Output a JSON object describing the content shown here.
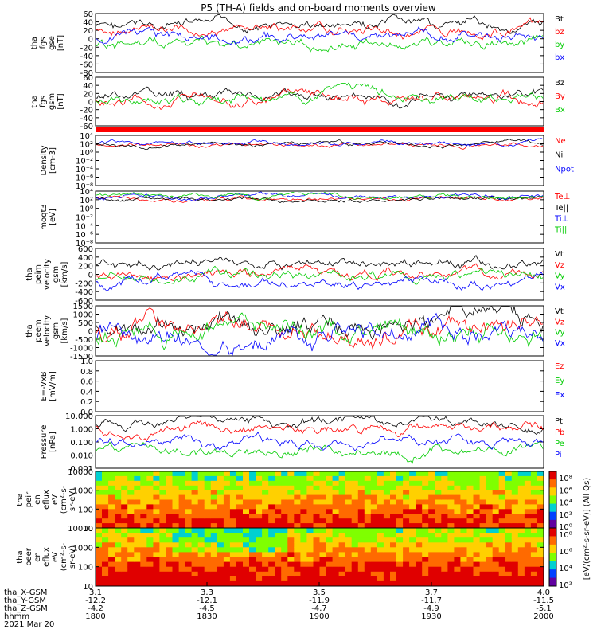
{
  "chart_data": {
    "type": "line",
    "title": "P5 (TH-A) fields and on-board moments overview",
    "panels": [
      {
        "ylabel": [
          "tha",
          "fgs",
          "gse",
          "[nT]"
        ],
        "ylim": [
          -80,
          60
        ],
        "ytick_labels": [
          "60",
          "40",
          "20",
          "0",
          "-20",
          "-40",
          "-60",
          "-80"
        ],
        "series": [
          {
            "name": "Bt",
            "color": "#000000",
            "level": 28
          },
          {
            "name": "bz",
            "color": "#ff0000",
            "level": 22
          },
          {
            "name": "by",
            "color": "#00cc00",
            "level": -12
          },
          {
            "name": "bx",
            "color": "#0000ff",
            "level": 5
          }
        ]
      },
      {
        "ylabel": [
          "tha",
          "fgs",
          "gsm",
          "[nT]"
        ],
        "ylim": [
          -80,
          60
        ],
        "ytick_labels": [
          "60",
          "40",
          "20",
          "0",
          "-20",
          "-40",
          "-60"
        ],
        "series": [
          {
            "name": "Bz",
            "color": "#000000",
            "level": 3
          },
          {
            "name": "By",
            "color": "#ff0000",
            "level": -5
          },
          {
            "name": "Bx",
            "color": "#00cc00",
            "level": 0
          }
        ]
      },
      {
        "ylabel": [
          "Density",
          "[cm-3]"
        ],
        "ytick_labels": [
          "10⁴",
          "10²",
          "10⁰",
          "10⁻²",
          "10⁻⁴",
          "10⁻⁶",
          "10⁻⁸"
        ],
        "series": [
          {
            "name": "Ne",
            "color": "#ff0000",
            "level": 0.8
          },
          {
            "name": "Ni",
            "color": "#000000",
            "level": 0.82
          },
          {
            "name": "Npot",
            "color": "#0000ff",
            "level": 0.85
          }
        ]
      },
      {
        "ylabel": [
          "moqt3",
          "[eV]"
        ],
        "ytick_labels": [
          "10⁴",
          "10²",
          "10⁰",
          "10⁻²",
          "10⁻⁴",
          "10⁻⁶",
          "10⁻⁸"
        ],
        "series": [
          {
            "name": "Te⊥",
            "color": "#ff0000",
            "level": 0.85
          },
          {
            "name": "Te||",
            "color": "#000000",
            "level": 0.84
          },
          {
            "name": "Ti⊥",
            "color": "#0000ff",
            "level": 0.9
          },
          {
            "name": "Ti||",
            "color": "#00cc00",
            "level": 0.91
          }
        ]
      },
      {
        "ylabel": [
          "tha",
          "peim",
          "velocity",
          "gsm",
          "[km/s]"
        ],
        "ylim": [
          -600,
          600
        ],
        "ytick_labels": [
          "600",
          "400",
          "200",
          "0",
          "-200",
          "-400",
          "-600"
        ],
        "series": [
          {
            "name": "Vt",
            "color": "#000000",
            "level": 260
          },
          {
            "name": "Vz",
            "color": "#ff0000",
            "level": -40
          },
          {
            "name": "Vy",
            "color": "#00cc00",
            "level": -70
          },
          {
            "name": "Vx",
            "color": "#0000ff",
            "level": -160
          }
        ]
      },
      {
        "ylabel": [
          "tha",
          "peem",
          "velocity",
          "gsm",
          "[km/s]"
        ],
        "ylim": [
          -1500,
          1500
        ],
        "ytick_labels": [
          "1500",
          "1000",
          "500",
          "0",
          "-500",
          "-1000",
          "-1500"
        ],
        "series": [
          {
            "name": "Vt",
            "color": "#000000",
            "level": 400
          },
          {
            "name": "Vz",
            "color": "#ff0000",
            "level": 0
          },
          {
            "name": "Vy",
            "color": "#00cc00",
            "level": -100
          },
          {
            "name": "Vx",
            "color": "#0000ff",
            "level": -250
          }
        ]
      },
      {
        "ylabel": [
          "E=-VxB",
          "[mV/m]"
        ],
        "ylim": [
          0,
          1
        ],
        "ytick_labels": [
          "1.0",
          "0.8",
          "0.6",
          "0.4",
          "0.2",
          "0.0"
        ],
        "series": [
          {
            "name": "Ez",
            "color": "#ff0000"
          },
          {
            "name": "Ey",
            "color": "#00cc00"
          },
          {
            "name": "Ex",
            "color": "#0000ff"
          }
        ]
      },
      {
        "ylabel": [
          "Pressure",
          "[nPa]"
        ],
        "ytick_labels": [
          "10.000",
          "1.000",
          "0.100",
          "0.010",
          "0.001"
        ],
        "series": [
          {
            "name": "Pt",
            "color": "#000000",
            "level": 0.9
          },
          {
            "name": "Pb",
            "color": "#ff0000",
            "level": 0.7
          },
          {
            "name": "Pe",
            "color": "#00cc00",
            "level": 0.04
          },
          {
            "name": "Pi",
            "color": "#0000ff",
            "level": 0.25
          }
        ]
      },
      {
        "ylabel": [
          "tha",
          "peir",
          "en",
          "eflux",
          "eV",
          "(cm²-s-",
          "sr-eV)"
        ],
        "ytick_labels": [
          "10000",
          "1000",
          "100",
          "10"
        ]
      },
      {
        "ylabel": [
          "tha",
          "peer",
          "en",
          "eflux",
          "eV",
          "(cm²-s-",
          "sr-eV)"
        ],
        "ytick_labels": [
          "10000",
          "1000",
          "100",
          "10"
        ]
      }
    ],
    "colorbar": {
      "label": "[eV/(cm²-s-sr-eV)] (All Qs)",
      "upper_ticks": [
        "10⁸",
        "10⁶",
        "10⁴",
        "10²",
        "10⁰"
      ],
      "lower_ticks": [
        "10⁸",
        "10⁶",
        "10⁴",
        "10²"
      ]
    },
    "xaxis": {
      "rows": [
        {
          "label": "tha_X-GSM",
          "values": [
            "3.1",
            "3.3",
            "3.5",
            "3.7",
            "4.0"
          ]
        },
        {
          "label": "tha_Y-GSM",
          "values": [
            "-12.2",
            "-12.1",
            "-11.9",
            "-11.7",
            "-11.5"
          ]
        },
        {
          "label": "tha_Z-GSM",
          "values": [
            "-4.2",
            "-4.5",
            "-4.7",
            "-4.9",
            "-5.1"
          ]
        },
        {
          "label": "hhmm",
          "values": [
            "1800",
            "1830",
            "1900",
            "1930",
            "2000"
          ]
        }
      ],
      "date": "2021 Mar 20"
    }
  }
}
